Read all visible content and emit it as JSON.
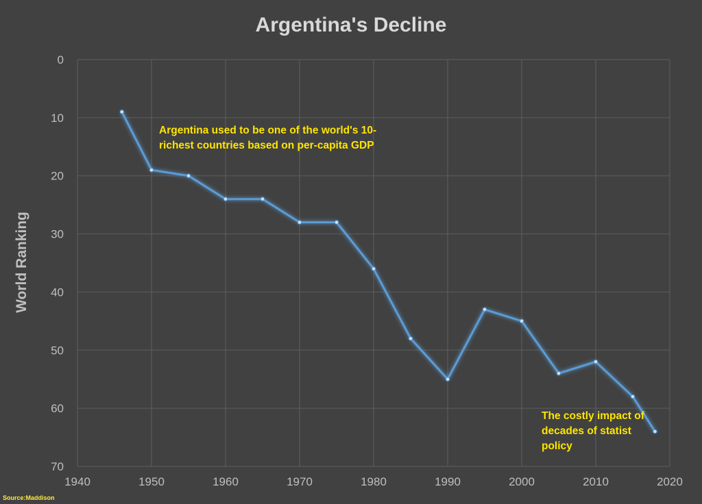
{
  "chart_data": {
    "type": "line",
    "title": "Argentina's Decline",
    "ylabel": "World Ranking",
    "xlabel": "",
    "xlim": [
      1940,
      2020
    ],
    "ylim": [
      0,
      70
    ],
    "y_inverted": true,
    "x_ticks": [
      "1940",
      "1950",
      "1960",
      "1970",
      "1980",
      "1990",
      "2000",
      "2010",
      "2020"
    ],
    "y_ticks": [
      "0",
      "10",
      "20",
      "30",
      "40",
      "50",
      "60",
      "70"
    ],
    "grid": true,
    "series": [
      {
        "color": "#5b9bd5",
        "points": [
          {
            "x": 1946,
            "y": 9
          },
          {
            "x": 1950,
            "y": 19
          },
          {
            "x": 1955,
            "y": 20
          },
          {
            "x": 1960,
            "y": 24
          },
          {
            "x": 1965,
            "y": 24
          },
          {
            "x": 1970,
            "y": 28
          },
          {
            "x": 1975,
            "y": 28
          },
          {
            "x": 1980,
            "y": 36
          },
          {
            "x": 1985,
            "y": 48
          },
          {
            "x": 1990,
            "y": 55
          },
          {
            "x": 1995,
            "y": 43
          },
          {
            "x": 2000,
            "y": 45
          },
          {
            "x": 2005,
            "y": 54
          },
          {
            "x": 2010,
            "y": 52
          },
          {
            "x": 2015,
            "y": 58
          },
          {
            "x": 2018,
            "y": 64
          }
        ]
      }
    ],
    "annotations": [
      "Argentina used to be one of the world's 10-richest countries based on per-capita GDP",
      "The costly impact of decades of statist policy"
    ],
    "source": "Source:Maddison"
  },
  "colors": {
    "background": "#414141",
    "grid": "#5e5e5e",
    "line": "#5b9bd5",
    "annotation": "#ffe600",
    "text": "#bfbfbf"
  }
}
